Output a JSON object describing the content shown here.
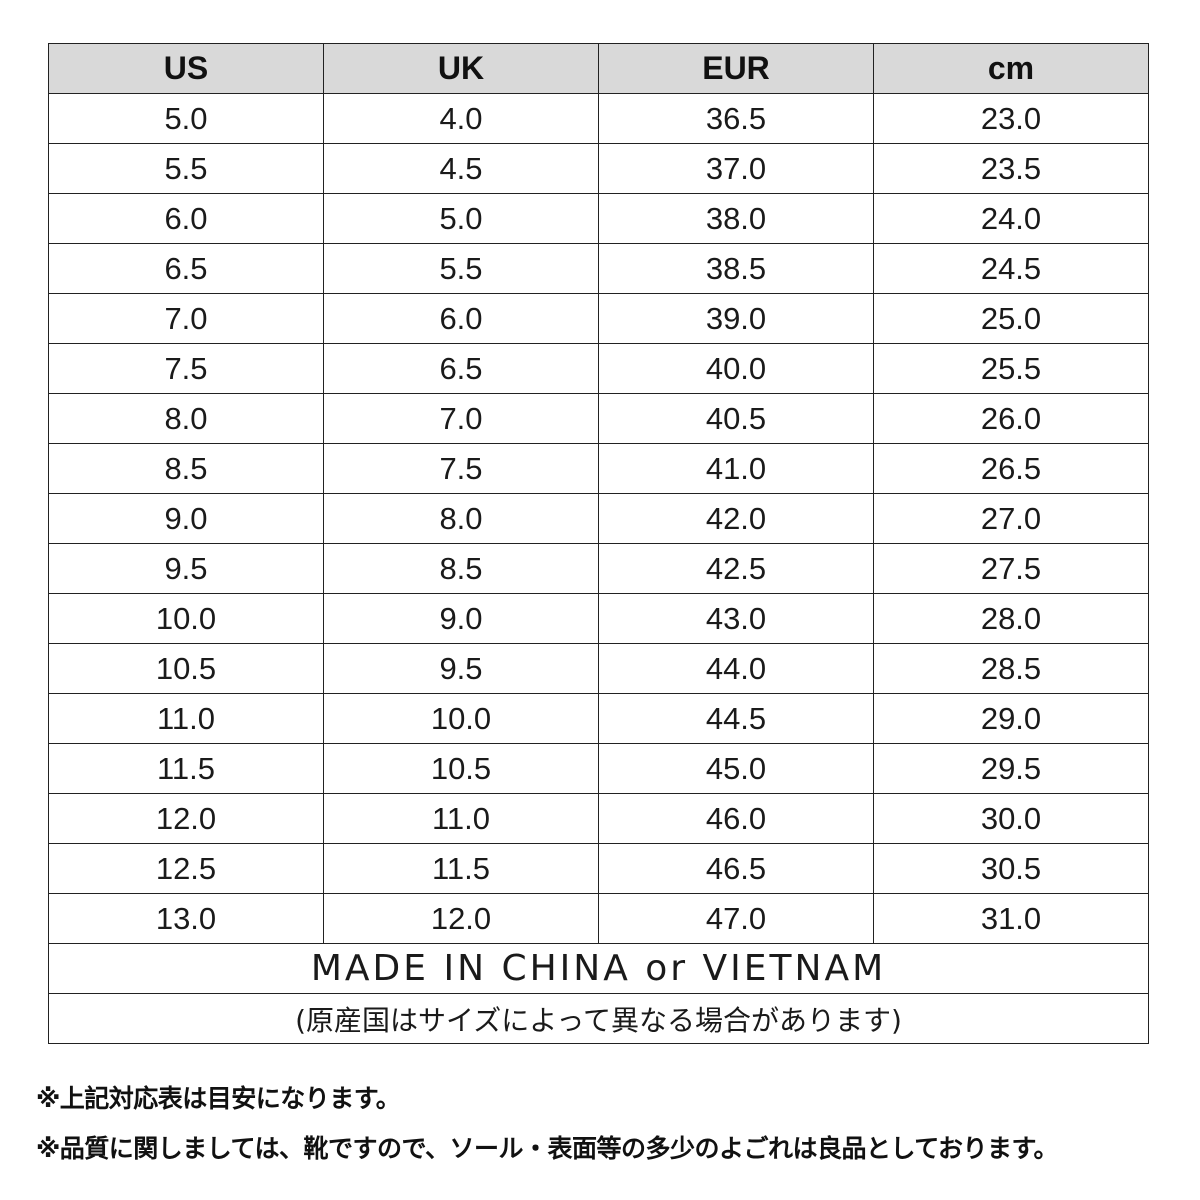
{
  "table": {
    "headers": [
      "US",
      "UK",
      "EUR",
      "cm"
    ],
    "rows": [
      [
        "5.0",
        "4.0",
        "36.5",
        "23.0"
      ],
      [
        "5.5",
        "4.5",
        "37.0",
        "23.5"
      ],
      [
        "6.0",
        "5.0",
        "38.0",
        "24.0"
      ],
      [
        "6.5",
        "5.5",
        "38.5",
        "24.5"
      ],
      [
        "7.0",
        "6.0",
        "39.0",
        "25.0"
      ],
      [
        "7.5",
        "6.5",
        "40.0",
        "25.5"
      ],
      [
        "8.0",
        "7.0",
        "40.5",
        "26.0"
      ],
      [
        "8.5",
        "7.5",
        "41.0",
        "26.5"
      ],
      [
        "9.0",
        "8.0",
        "42.0",
        "27.0"
      ],
      [
        "9.5",
        "8.5",
        "42.5",
        "27.5"
      ],
      [
        "10.0",
        "9.0",
        "43.0",
        "28.0"
      ],
      [
        "10.5",
        "9.5",
        "44.0",
        "28.5"
      ],
      [
        "11.0",
        "10.0",
        "44.5",
        "29.0"
      ],
      [
        "11.5",
        "10.5",
        "45.0",
        "29.5"
      ],
      [
        "12.0",
        "11.0",
        "46.0",
        "30.0"
      ],
      [
        "12.5",
        "11.5",
        "46.5",
        "30.5"
      ],
      [
        "13.0",
        "12.0",
        "47.0",
        "31.0"
      ]
    ],
    "origin": "MADE IN CHINA or VIETNAM",
    "origin_note": "(原産国はサイズによって異なる場合があります)",
    "header_bg": "#d9d9d9"
  },
  "notes": [
    "※上記対応表は目安になります。",
    "※品質に関しましては、靴ですので、ソール・表面等の多少のよごれは良品としております。"
  ]
}
